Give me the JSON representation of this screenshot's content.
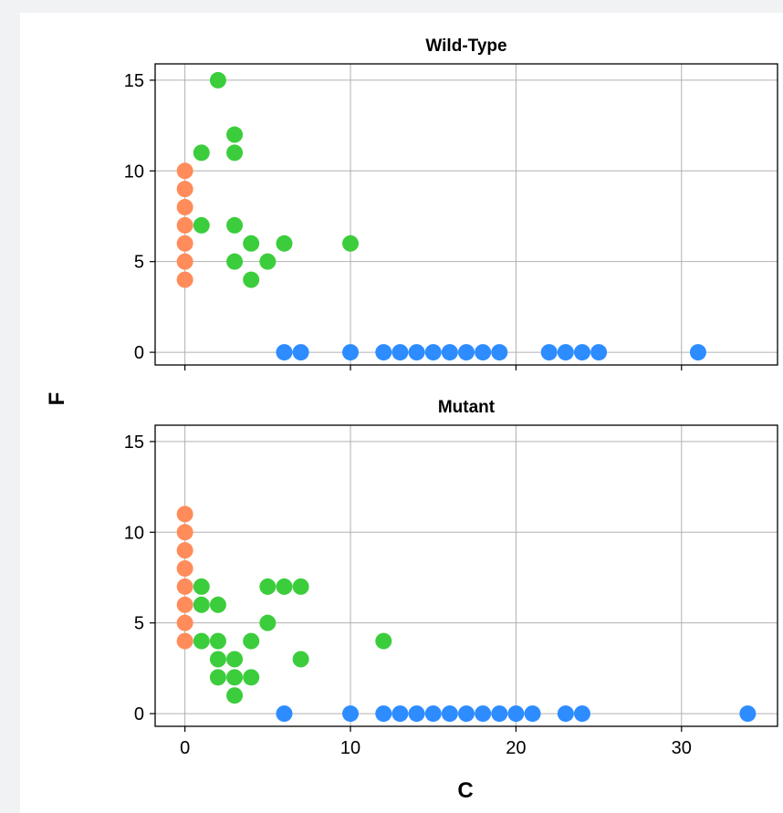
{
  "chart_data": {
    "type": "scatter",
    "xlabel": "C",
    "ylabel": "F",
    "xlim": [
      -1.8,
      35.8
    ],
    "ylim": [
      -0.7,
      15.9
    ],
    "xticks": [
      0,
      10,
      20,
      30
    ],
    "yticks": [
      0,
      5,
      10,
      15
    ],
    "grid": true,
    "colors": {
      "orange": "#ff8c5a",
      "green": "#3ccd3c",
      "blue": "#2d8cff"
    },
    "panels": [
      {
        "title": "Wild-Type",
        "points": [
          {
            "x": 0,
            "y": 10,
            "c": "orange"
          },
          {
            "x": 0,
            "y": 9,
            "c": "orange"
          },
          {
            "x": 0,
            "y": 8,
            "c": "orange"
          },
          {
            "x": 0,
            "y": 7,
            "c": "orange"
          },
          {
            "x": 0,
            "y": 6,
            "c": "orange"
          },
          {
            "x": 0,
            "y": 5,
            "c": "orange"
          },
          {
            "x": 0,
            "y": 4,
            "c": "orange"
          },
          {
            "x": 2,
            "y": 15,
            "c": "green"
          },
          {
            "x": 3,
            "y": 12,
            "c": "green"
          },
          {
            "x": 1,
            "y": 11,
            "c": "green"
          },
          {
            "x": 3,
            "y": 11,
            "c": "green"
          },
          {
            "x": 1,
            "y": 7,
            "c": "green"
          },
          {
            "x": 3,
            "y": 7,
            "c": "green"
          },
          {
            "x": 4,
            "y": 6,
            "c": "green"
          },
          {
            "x": 6,
            "y": 6,
            "c": "green"
          },
          {
            "x": 10,
            "y": 6,
            "c": "green"
          },
          {
            "x": 3,
            "y": 5,
            "c": "green"
          },
          {
            "x": 5,
            "y": 5,
            "c": "green"
          },
          {
            "x": 4,
            "y": 4,
            "c": "green"
          },
          {
            "x": 6,
            "y": 0,
            "c": "blue"
          },
          {
            "x": 7,
            "y": 0,
            "c": "blue"
          },
          {
            "x": 10,
            "y": 0,
            "c": "blue"
          },
          {
            "x": 12,
            "y": 0,
            "c": "blue"
          },
          {
            "x": 13,
            "y": 0,
            "c": "blue"
          },
          {
            "x": 14,
            "y": 0,
            "c": "blue"
          },
          {
            "x": 15,
            "y": 0,
            "c": "blue"
          },
          {
            "x": 16,
            "y": 0,
            "c": "blue"
          },
          {
            "x": 17,
            "y": 0,
            "c": "blue"
          },
          {
            "x": 18,
            "y": 0,
            "c": "blue"
          },
          {
            "x": 19,
            "y": 0,
            "c": "blue"
          },
          {
            "x": 22,
            "y": 0,
            "c": "blue"
          },
          {
            "x": 23,
            "y": 0,
            "c": "blue"
          },
          {
            "x": 24,
            "y": 0,
            "c": "blue"
          },
          {
            "x": 25,
            "y": 0,
            "c": "blue"
          },
          {
            "x": 31,
            "y": 0,
            "c": "blue"
          }
        ]
      },
      {
        "title": "Mutant",
        "points": [
          {
            "x": 0,
            "y": 11,
            "c": "orange"
          },
          {
            "x": 0,
            "y": 10,
            "c": "orange"
          },
          {
            "x": 0,
            "y": 9,
            "c": "orange"
          },
          {
            "x": 0,
            "y": 8,
            "c": "orange"
          },
          {
            "x": 0,
            "y": 7,
            "c": "orange"
          },
          {
            "x": 0,
            "y": 6,
            "c": "orange"
          },
          {
            "x": 0,
            "y": 5,
            "c": "orange"
          },
          {
            "x": 0,
            "y": 4,
            "c": "orange"
          },
          {
            "x": 1,
            "y": 7,
            "c": "green"
          },
          {
            "x": 5,
            "y": 7,
            "c": "green"
          },
          {
            "x": 6,
            "y": 7,
            "c": "green"
          },
          {
            "x": 7,
            "y": 7,
            "c": "green"
          },
          {
            "x": 1,
            "y": 6,
            "c": "green"
          },
          {
            "x": 2,
            "y": 6,
            "c": "green"
          },
          {
            "x": 5,
            "y": 5,
            "c": "green"
          },
          {
            "x": 1,
            "y": 4,
            "c": "green"
          },
          {
            "x": 2,
            "y": 4,
            "c": "green"
          },
          {
            "x": 4,
            "y": 4,
            "c": "green"
          },
          {
            "x": 12,
            "y": 4,
            "c": "green"
          },
          {
            "x": 2,
            "y": 3,
            "c": "green"
          },
          {
            "x": 3,
            "y": 3,
            "c": "green"
          },
          {
            "x": 7,
            "y": 3,
            "c": "green"
          },
          {
            "x": 2,
            "y": 2,
            "c": "green"
          },
          {
            "x": 3,
            "y": 2,
            "c": "green"
          },
          {
            "x": 4,
            "y": 2,
            "c": "green"
          },
          {
            "x": 3,
            "y": 1,
            "c": "green"
          },
          {
            "x": 6,
            "y": 0,
            "c": "blue"
          },
          {
            "x": 10,
            "y": 0,
            "c": "blue"
          },
          {
            "x": 12,
            "y": 0,
            "c": "blue"
          },
          {
            "x": 13,
            "y": 0,
            "c": "blue"
          },
          {
            "x": 14,
            "y": 0,
            "c": "blue"
          },
          {
            "x": 15,
            "y": 0,
            "c": "blue"
          },
          {
            "x": 16,
            "y": 0,
            "c": "blue"
          },
          {
            "x": 17,
            "y": 0,
            "c": "blue"
          },
          {
            "x": 18,
            "y": 0,
            "c": "blue"
          },
          {
            "x": 19,
            "y": 0,
            "c": "blue"
          },
          {
            "x": 20,
            "y": 0,
            "c": "blue"
          },
          {
            "x": 21,
            "y": 0,
            "c": "blue"
          },
          {
            "x": 23,
            "y": 0,
            "c": "blue"
          },
          {
            "x": 24,
            "y": 0,
            "c": "blue"
          },
          {
            "x": 34,
            "y": 0,
            "c": "blue"
          }
        ]
      }
    ]
  }
}
